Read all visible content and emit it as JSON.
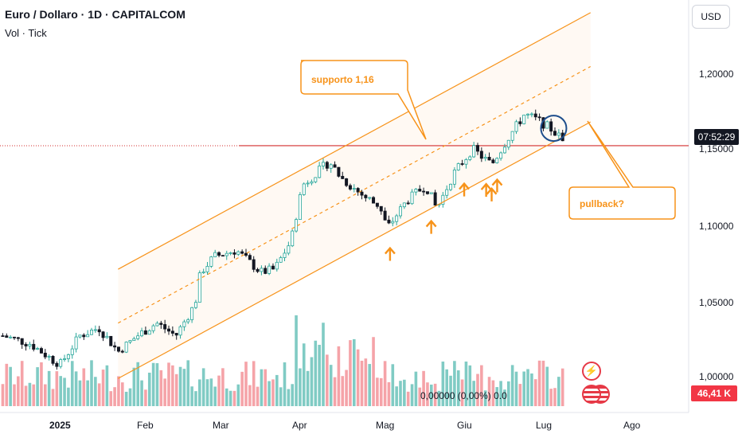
{
  "header": {
    "title": "Euro / Dollaro · 1D · CAPITALCOM",
    "vol_label": "Vol · Tick"
  },
  "currency_button": "USD",
  "current_price_label": "07:52:29",
  "volume_value_label": "46,41 K",
  "volume_readout": "0,00000 (0,00%) 0.0",
  "annotations": {
    "support_label": "supporto 1,16",
    "pullback_label": "pullback?"
  },
  "colors": {
    "up": "#26a69a",
    "down": "#131722",
    "vol_up": "#80cbc4",
    "vol_down": "#f5a3a8",
    "channel": "#f7931a",
    "support_line": "#d32f2f",
    "circle": "#1e4e8c"
  },
  "chart_data": {
    "type": "candlestick",
    "title": "Euro / Dollaro · 1D · CAPITALCOM",
    "y_ticks": [
      "1,20000",
      "1,15000",
      "1,10000",
      "1,05000",
      "1,00000"
    ],
    "x_ticks": [
      "2025",
      "Feb",
      "Mar",
      "Apr",
      "Mag",
      "Giu",
      "Lug",
      "Ago"
    ],
    "ylim": [
      0.988,
      1.252
    ],
    "support_level": 1.16,
    "keypoints": [
      {
        "date": "2024-12-23",
        "close": 1.04
      },
      {
        "date": "2025-01-02",
        "close": 1.035
      },
      {
        "date": "2025-01-10",
        "close": 1.025
      },
      {
        "date": "2025-01-13",
        "close": 1.022
      },
      {
        "date": "2025-01-20",
        "close": 1.04
      },
      {
        "date": "2025-01-27",
        "close": 1.045
      },
      {
        "date": "2025-02-03",
        "close": 1.03
      },
      {
        "date": "2025-02-10",
        "close": 1.04
      },
      {
        "date": "2025-02-17",
        "close": 1.048
      },
      {
        "date": "2025-02-24",
        "close": 1.04
      },
      {
        "date": "2025-03-03",
        "close": 1.06
      },
      {
        "date": "2025-03-05",
        "close": 1.08
      },
      {
        "date": "2025-03-10",
        "close": 1.09
      },
      {
        "date": "2025-03-18",
        "close": 1.094
      },
      {
        "date": "2025-03-27",
        "close": 1.08
      },
      {
        "date": "2025-04-01",
        "close": 1.082
      },
      {
        "date": "2025-04-07",
        "close": 1.1
      },
      {
        "date": "2025-04-11",
        "close": 1.135
      },
      {
        "date": "2025-04-21",
        "close": 1.15
      },
      {
        "date": "2025-04-25",
        "close": 1.14
      },
      {
        "date": "2025-05-02",
        "close": 1.13
      },
      {
        "date": "2025-05-09",
        "close": 1.122
      },
      {
        "date": "2025-05-12",
        "close": 1.108
      },
      {
        "date": "2025-05-19",
        "close": 1.125
      },
      {
        "date": "2025-05-26",
        "close": 1.135
      },
      {
        "date": "2025-05-30",
        "close": 1.12
      },
      {
        "date": "2025-06-05",
        "close": 1.142
      },
      {
        "date": "2025-06-12",
        "close": 1.158
      },
      {
        "date": "2025-06-19",
        "close": 1.148
      },
      {
        "date": "2025-06-25",
        "close": 1.165
      },
      {
        "date": "2025-07-01",
        "close": 1.18
      },
      {
        "date": "2025-07-07",
        "close": 1.175
      },
      {
        "date": "2025-07-11",
        "close": 1.17
      },
      {
        "date": "2025-07-14",
        "close": 1.165
      },
      {
        "date": "2025-07-16",
        "close": 1.16
      }
    ],
    "channel_lines": [
      {
        "name": "upper",
        "from": {
          "date": "2025-02-03",
          "price": 1.082
        },
        "to": {
          "date": "2025-07-25",
          "price": 1.244
        }
      },
      {
        "name": "middle",
        "from": {
          "date": "2025-02-03",
          "price": 1.048
        },
        "to": {
          "date": "2025-07-25",
          "price": 1.21
        }
      },
      {
        "name": "lower",
        "from": {
          "date": "2025-02-03",
          "price": 1.013
        },
        "to": {
          "date": "2025-07-25",
          "price": 1.175
        }
      }
    ],
    "touch_arrows": [
      "2025-05-13",
      "2025-05-28",
      "2025-06-09",
      "2025-06-17",
      "2025-06-19",
      "2025-06-21"
    ]
  }
}
